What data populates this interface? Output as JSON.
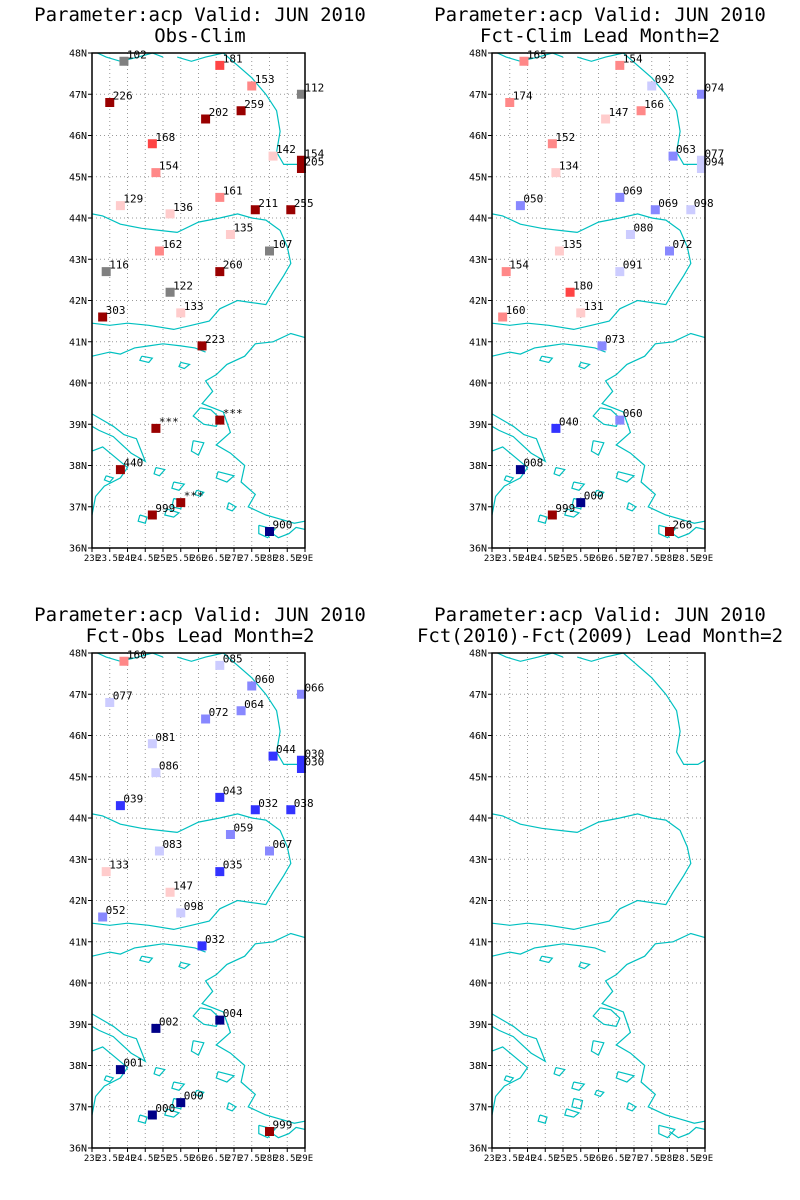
{
  "colors": {
    "coast": "#00c0c0",
    "grid": "#999999",
    "axis": "#000000",
    "missing": "#808080",
    "pos1": "#ffcccc",
    "pos2": "#ff8888",
    "pos3": "#ff4444",
    "pos4": "#990000",
    "neg1": "#ccccff",
    "neg2": "#8888ff",
    "neg3": "#3333ff",
    "neg4": "#000088"
  },
  "axes": {
    "lat_labels": [
      "48N",
      "47N",
      "46N",
      "45N",
      "44N",
      "43N",
      "42N",
      "41N",
      "40N",
      "39N",
      "38N",
      "37N",
      "36N"
    ],
    "lon_labels": [
      "23E",
      "23.5E",
      "24E",
      "24.5E",
      "25E",
      "25.5E",
      "26E",
      "26.5E",
      "27E",
      "27.5E",
      "28E",
      "28.5E",
      "29E"
    ],
    "lat_values": [
      48,
      47,
      46,
      45,
      44,
      43,
      42,
      41,
      40,
      39,
      38,
      37,
      36
    ],
    "lon_values": [
      23,
      23.5,
      24,
      24.5,
      25,
      25.5,
      26,
      26.5,
      27,
      27.5,
      28,
      28.5,
      29
    ],
    "lon_range": [
      23,
      29
    ],
    "lat_range": [
      36,
      48
    ]
  },
  "panels": [
    {
      "title1": "Parameter:acp Valid: JUN 2010",
      "title2": "Obs-Clim",
      "chart_data": {
        "type": "scatter",
        "stations": [
          {
            "lon": 23.9,
            "lat": 47.8,
            "label": "102",
            "c": "missing"
          },
          {
            "lon": 26.6,
            "lat": 47.7,
            "label": "181",
            "c": "pos3"
          },
          {
            "lon": 27.5,
            "lat": 47.2,
            "label": "153",
            "c": "pos2"
          },
          {
            "lon": 28.9,
            "lat": 47.0,
            "label": "112",
            "c": "missing"
          },
          {
            "lon": 23.5,
            "lat": 46.8,
            "label": "226",
            "c": "pos4"
          },
          {
            "lon": 27.2,
            "lat": 46.6,
            "label": "259",
            "c": "pos4"
          },
          {
            "lon": 26.2,
            "lat": 46.4,
            "label": "202",
            "c": "pos4"
          },
          {
            "lon": 24.7,
            "lat": 45.8,
            "label": "168",
            "c": "pos3"
          },
          {
            "lon": 28.1,
            "lat": 45.5,
            "label": "142",
            "c": "pos1"
          },
          {
            "lon": 28.9,
            "lat": 45.4,
            "label": "154",
            "c": "pos4"
          },
          {
            "lon": 28.9,
            "lat": 45.2,
            "label": "205",
            "c": "pos4"
          },
          {
            "lon": 24.8,
            "lat": 45.1,
            "label": "154",
            "c": "pos2"
          },
          {
            "lon": 26.6,
            "lat": 44.5,
            "label": "161",
            "c": "pos2"
          },
          {
            "lon": 23.8,
            "lat": 44.3,
            "label": "129",
            "c": "pos1"
          },
          {
            "lon": 25.2,
            "lat": 44.1,
            "label": "136",
            "c": "pos1"
          },
          {
            "lon": 27.6,
            "lat": 44.2,
            "label": "211",
            "c": "pos4"
          },
          {
            "lon": 28.6,
            "lat": 44.2,
            "label": "255",
            "c": "pos4"
          },
          {
            "lon": 26.9,
            "lat": 43.6,
            "label": "135",
            "c": "pos1"
          },
          {
            "lon": 28.0,
            "lat": 43.2,
            "label": "107",
            "c": "missing"
          },
          {
            "lon": 24.9,
            "lat": 43.2,
            "label": "162",
            "c": "pos2"
          },
          {
            "lon": 26.6,
            "lat": 42.7,
            "label": "260",
            "c": "pos4"
          },
          {
            "lon": 23.4,
            "lat": 42.7,
            "label": "116",
            "c": "missing"
          },
          {
            "lon": 25.2,
            "lat": 42.2,
            "label": "122",
            "c": "missing"
          },
          {
            "lon": 25.5,
            "lat": 41.7,
            "label": "133",
            "c": "pos1"
          },
          {
            "lon": 23.3,
            "lat": 41.6,
            "label": "303",
            "c": "pos4"
          },
          {
            "lon": 26.1,
            "lat": 40.9,
            "label": "223",
            "c": "pos4"
          },
          {
            "lon": 26.6,
            "lat": 39.1,
            "label": "***",
            "c": "pos4"
          },
          {
            "lon": 24.8,
            "lat": 38.9,
            "label": "***",
            "c": "pos4"
          },
          {
            "lon": 23.8,
            "lat": 37.9,
            "label": "440",
            "c": "pos4"
          },
          {
            "lon": 25.5,
            "lat": 37.1,
            "label": "***",
            "c": "pos4"
          },
          {
            "lon": 24.7,
            "lat": 36.8,
            "label": "999",
            "c": "pos4"
          },
          {
            "lon": 28.0,
            "lat": 36.4,
            "label": "900",
            "c": "neg4"
          }
        ]
      }
    },
    {
      "title1": "Parameter:acp Valid: JUN 2010",
      "title2": "Fct-Clim Lead Month=2",
      "chart_data": {
        "type": "scatter",
        "stations": [
          {
            "lon": 23.9,
            "lat": 47.8,
            "label": "165",
            "c": "pos2"
          },
          {
            "lon": 26.6,
            "lat": 47.7,
            "label": "154",
            "c": "pos2"
          },
          {
            "lon": 27.5,
            "lat": 47.2,
            "label": "092",
            "c": "neg1"
          },
          {
            "lon": 28.9,
            "lat": 47.0,
            "label": "074",
            "c": "neg2"
          },
          {
            "lon": 23.5,
            "lat": 46.8,
            "label": "174",
            "c": "pos2"
          },
          {
            "lon": 27.2,
            "lat": 46.6,
            "label": "166",
            "c": "pos2"
          },
          {
            "lon": 26.2,
            "lat": 46.4,
            "label": "147",
            "c": "pos1"
          },
          {
            "lon": 24.7,
            "lat": 45.8,
            "label": "152",
            "c": "pos2"
          },
          {
            "lon": 28.1,
            "lat": 45.5,
            "label": "063",
            "c": "neg2"
          },
          {
            "lon": 28.9,
            "lat": 45.4,
            "label": "077",
            "c": "neg1"
          },
          {
            "lon": 28.9,
            "lat": 45.2,
            "label": "094",
            "c": "neg1"
          },
          {
            "lon": 24.8,
            "lat": 45.1,
            "label": "134",
            "c": "pos1"
          },
          {
            "lon": 26.6,
            "lat": 44.5,
            "label": "069",
            "c": "neg2"
          },
          {
            "lon": 23.8,
            "lat": 44.3,
            "label": "050",
            "c": "neg2"
          },
          {
            "lon": 27.6,
            "lat": 44.2,
            "label": "069",
            "c": "neg2"
          },
          {
            "lon": 28.6,
            "lat": 44.2,
            "label": "098",
            "c": "neg1"
          },
          {
            "lon": 26.9,
            "lat": 43.6,
            "label": "080",
            "c": "neg1"
          },
          {
            "lon": 28.0,
            "lat": 43.2,
            "label": "072",
            "c": "neg2"
          },
          {
            "lon": 24.9,
            "lat": 43.2,
            "label": "135",
            "c": "pos1"
          },
          {
            "lon": 26.6,
            "lat": 42.7,
            "label": "091",
            "c": "neg1"
          },
          {
            "lon": 23.4,
            "lat": 42.7,
            "label": "154",
            "c": "pos2"
          },
          {
            "lon": 25.2,
            "lat": 42.2,
            "label": "180",
            "c": "pos3"
          },
          {
            "lon": 25.5,
            "lat": 41.7,
            "label": "131",
            "c": "pos1"
          },
          {
            "lon": 23.3,
            "lat": 41.6,
            "label": "160",
            "c": "pos2"
          },
          {
            "lon": 26.1,
            "lat": 40.9,
            "label": "073",
            "c": "neg2"
          },
          {
            "lon": 26.6,
            "lat": 39.1,
            "label": "060",
            "c": "neg2"
          },
          {
            "lon": 24.8,
            "lat": 38.9,
            "label": "040",
            "c": "neg3"
          },
          {
            "lon": 23.8,
            "lat": 37.9,
            "label": "008",
            "c": "neg4"
          },
          {
            "lon": 25.5,
            "lat": 37.1,
            "label": "000",
            "c": "neg4"
          },
          {
            "lon": 24.7,
            "lat": 36.8,
            "label": "999",
            "c": "pos4"
          },
          {
            "lon": 28.0,
            "lat": 36.4,
            "label": "266",
            "c": "pos4"
          }
        ]
      }
    },
    {
      "title1": "Parameter:acp Valid: JUN 2010",
      "title2": "Fct-Obs Lead Month=2",
      "chart_data": {
        "type": "scatter",
        "stations": [
          {
            "lon": 23.9,
            "lat": 47.8,
            "label": "160",
            "c": "pos2"
          },
          {
            "lon": 26.6,
            "lat": 47.7,
            "label": "085",
            "c": "neg1"
          },
          {
            "lon": 27.5,
            "lat": 47.2,
            "label": "060",
            "c": "neg2"
          },
          {
            "lon": 28.9,
            "lat": 47.0,
            "label": "066",
            "c": "neg2"
          },
          {
            "lon": 23.5,
            "lat": 46.8,
            "label": "077",
            "c": "neg1"
          },
          {
            "lon": 27.2,
            "lat": 46.6,
            "label": "064",
            "c": "neg2"
          },
          {
            "lon": 26.2,
            "lat": 46.4,
            "label": "072",
            "c": "neg2"
          },
          {
            "lon": 24.7,
            "lat": 45.8,
            "label": "081",
            "c": "neg1"
          },
          {
            "lon": 28.1,
            "lat": 45.5,
            "label": "044",
            "c": "neg3"
          },
          {
            "lon": 28.9,
            "lat": 45.4,
            "label": "030",
            "c": "neg3"
          },
          {
            "lon": 28.9,
            "lat": 45.2,
            "label": "030",
            "c": "neg3"
          },
          {
            "lon": 24.8,
            "lat": 45.1,
            "label": "086",
            "c": "neg1"
          },
          {
            "lon": 26.6,
            "lat": 44.5,
            "label": "043",
            "c": "neg3"
          },
          {
            "lon": 23.8,
            "lat": 44.3,
            "label": "039",
            "c": "neg3"
          },
          {
            "lon": 27.6,
            "lat": 44.2,
            "label": "032",
            "c": "neg3"
          },
          {
            "lon": 28.6,
            "lat": 44.2,
            "label": "038",
            "c": "neg3"
          },
          {
            "lon": 26.9,
            "lat": 43.6,
            "label": "059",
            "c": "neg2"
          },
          {
            "lon": 28.0,
            "lat": 43.2,
            "label": "067",
            "c": "neg2"
          },
          {
            "lon": 24.9,
            "lat": 43.2,
            "label": "083",
            "c": "neg1"
          },
          {
            "lon": 26.6,
            "lat": 42.7,
            "label": "035",
            "c": "neg3"
          },
          {
            "lon": 23.4,
            "lat": 42.7,
            "label": "133",
            "c": "pos1"
          },
          {
            "lon": 25.2,
            "lat": 42.2,
            "label": "147",
            "c": "pos1"
          },
          {
            "lon": 25.5,
            "lat": 41.7,
            "label": "098",
            "c": "neg1"
          },
          {
            "lon": 23.3,
            "lat": 41.6,
            "label": "052",
            "c": "neg2"
          },
          {
            "lon": 26.1,
            "lat": 40.9,
            "label": "032",
            "c": "neg3"
          },
          {
            "lon": 26.6,
            "lat": 39.1,
            "label": "004",
            "c": "neg4"
          },
          {
            "lon": 24.8,
            "lat": 38.9,
            "label": "002",
            "c": "neg4"
          },
          {
            "lon": 23.8,
            "lat": 37.9,
            "label": "001",
            "c": "neg4"
          },
          {
            "lon": 25.5,
            "lat": 37.1,
            "label": "000",
            "c": "neg4"
          },
          {
            "lon": 24.7,
            "lat": 36.8,
            "label": "000",
            "c": "neg4"
          },
          {
            "lon": 28.0,
            "lat": 36.4,
            "label": "999",
            "c": "pos4"
          }
        ]
      }
    },
    {
      "title1": "Parameter:acp Valid: JUN 2010",
      "title2": "Fct(2010)-Fct(2009) Lead Month=2",
      "chart_data": {
        "type": "scatter",
        "stations": []
      }
    }
  ]
}
